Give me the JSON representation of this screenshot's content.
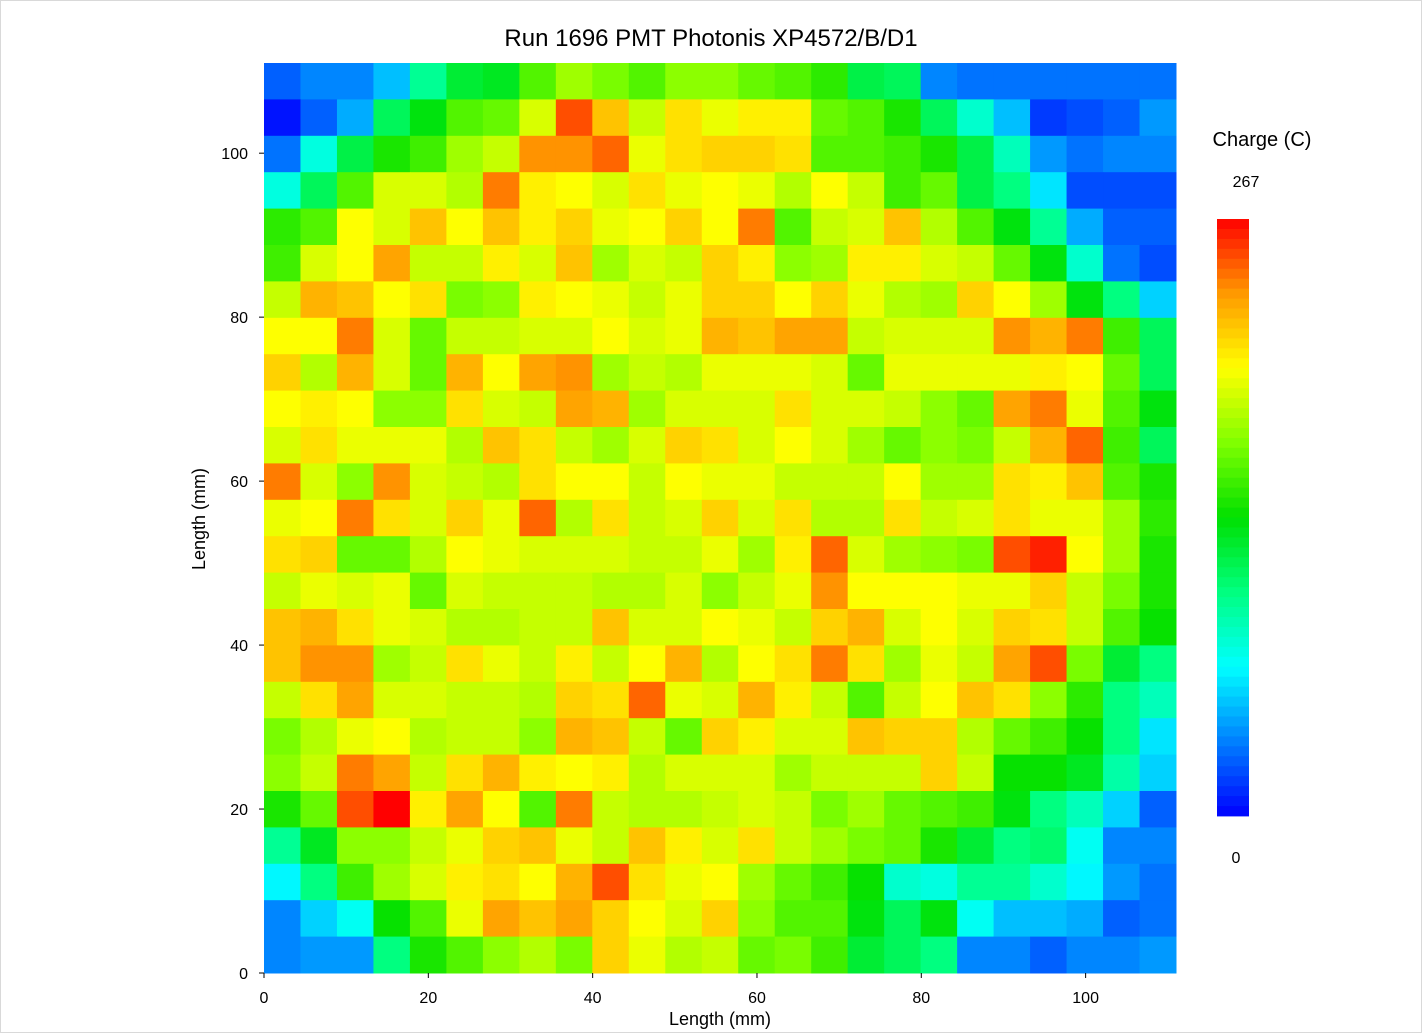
{
  "chart_data": {
    "type": "heatmap",
    "title": "Run 1696 PMT Photonis XP4572/B/D1",
    "xlabel": "Length (mm)",
    "ylabel": "Length (mm)",
    "xlim": [
      0,
      111
    ],
    "ylim": [
      0,
      111
    ],
    "x_ticks": [
      "0",
      "20",
      "40",
      "60",
      "80",
      "100"
    ],
    "y_ticks": [
      "0",
      "20",
      "40",
      "60",
      "80",
      "100"
    ],
    "grid": false,
    "legend": "right",
    "colorbar": {
      "title": "Charge (C)",
      "max_label": "267",
      "min_label": "0",
      "vmin": 0,
      "vmax": 267,
      "colors": [
        "#0000ff",
        "#0080ff",
        "#00ffff",
        "#00ff80",
        "#00e000",
        "#80ff00",
        "#ffff00",
        "#ff9900",
        "#ff0000"
      ]
    },
    "cell_size_mm": 4.44,
    "rows_top_to_bottom": [
      [
        25,
        35,
        35,
        50,
        95,
        120,
        125,
        155,
        175,
        165,
        155,
        170,
        170,
        160,
        155,
        145,
        115,
        110,
        35,
        30,
        30,
        30,
        30,
        30,
        30
      ],
      [
        5,
        25,
        45,
        110,
        130,
        155,
        160,
        190,
        250,
        220,
        185,
        210,
        195,
        205,
        205,
        160,
        155,
        140,
        110,
        80,
        50,
        15,
        20,
        25,
        40
      ],
      [
        30,
        75,
        115,
        140,
        150,
        175,
        185,
        235,
        235,
        245,
        195,
        210,
        215,
        215,
        210,
        155,
        155,
        150,
        140,
        115,
        85,
        40,
        30,
        35,
        35
      ],
      [
        75,
        110,
        155,
        190,
        190,
        180,
        240,
        205,
        200,
        190,
        210,
        195,
        200,
        195,
        180,
        200,
        185,
        150,
        160,
        115,
        100,
        60,
        20,
        20,
        20
      ],
      [
        145,
        155,
        200,
        190,
        220,
        200,
        220,
        205,
        215,
        195,
        200,
        215,
        200,
        240,
        155,
        185,
        190,
        220,
        180,
        155,
        130,
        95,
        45,
        25,
        25
      ],
      [
        150,
        190,
        200,
        230,
        185,
        185,
        205,
        190,
        220,
        175,
        190,
        185,
        215,
        205,
        170,
        175,
        205,
        205,
        190,
        185,
        160,
        130,
        80,
        30,
        20
      ],
      [
        185,
        225,
        220,
        200,
        210,
        165,
        170,
        205,
        200,
        195,
        185,
        195,
        215,
        215,
        200,
        215,
        195,
        180,
        175,
        215,
        200,
        175,
        130,
        100,
        55
      ],
      [
        200,
        200,
        240,
        190,
        160,
        185,
        185,
        190,
        190,
        200,
        190,
        195,
        225,
        220,
        230,
        230,
        185,
        190,
        190,
        190,
        235,
        225,
        240,
        150,
        110
      ],
      [
        215,
        180,
        225,
        190,
        160,
        225,
        200,
        230,
        235,
        175,
        185,
        180,
        195,
        195,
        195,
        190,
        160,
        195,
        195,
        195,
        195,
        205,
        200,
        160,
        110
      ],
      [
        200,
        205,
        200,
        170,
        170,
        210,
        190,
        185,
        230,
        225,
        175,
        190,
        190,
        190,
        210,
        190,
        190,
        185,
        170,
        160,
        230,
        240,
        195,
        155,
        130
      ],
      [
        190,
        210,
        195,
        195,
        195,
        180,
        220,
        210,
        185,
        175,
        190,
        215,
        210,
        190,
        200,
        190,
        175,
        160,
        170,
        165,
        185,
        225,
        245,
        150,
        110
      ],
      [
        240,
        190,
        170,
        235,
        190,
        185,
        180,
        210,
        200,
        200,
        185,
        200,
        195,
        195,
        185,
        185,
        185,
        200,
        175,
        175,
        210,
        205,
        220,
        155,
        140
      ],
      [
        195,
        200,
        240,
        210,
        190,
        215,
        195,
        245,
        180,
        210,
        185,
        190,
        215,
        190,
        210,
        180,
        180,
        210,
        185,
        190,
        210,
        195,
        195,
        175,
        145
      ],
      [
        210,
        215,
        160,
        160,
        180,
        200,
        195,
        190,
        190,
        190,
        185,
        185,
        195,
        175,
        205,
        245,
        190,
        175,
        170,
        165,
        250,
        260,
        200,
        175,
        140
      ],
      [
        185,
        195,
        190,
        195,
        160,
        190,
        185,
        185,
        185,
        180,
        180,
        190,
        170,
        185,
        195,
        235,
        200,
        200,
        200,
        195,
        195,
        215,
        185,
        165,
        140
      ],
      [
        220,
        225,
        210,
        195,
        190,
        180,
        180,
        185,
        185,
        220,
        190,
        190,
        200,
        195,
        185,
        215,
        225,
        190,
        200,
        190,
        215,
        210,
        185,
        155,
        135
      ],
      [
        220,
        235,
        235,
        175,
        185,
        210,
        195,
        185,
        205,
        185,
        200,
        225,
        180,
        200,
        210,
        240,
        210,
        175,
        195,
        185,
        230,
        250,
        165,
        120,
        100
      ],
      [
        185,
        210,
        230,
        190,
        190,
        185,
        185,
        180,
        215,
        210,
        245,
        195,
        190,
        225,
        205,
        185,
        155,
        185,
        200,
        220,
        210,
        170,
        145,
        100,
        85
      ],
      [
        165,
        180,
        195,
        200,
        180,
        185,
        185,
        170,
        225,
        220,
        185,
        160,
        215,
        205,
        190,
        190,
        220,
        215,
        215,
        180,
        160,
        150,
        135,
        100,
        60
      ],
      [
        170,
        185,
        240,
        230,
        185,
        210,
        225,
        205,
        200,
        205,
        180,
        190,
        190,
        190,
        175,
        185,
        185,
        185,
        215,
        185,
        135,
        135,
        125,
        90,
        55
      ],
      [
        140,
        160,
        250,
        267,
        205,
        230,
        200,
        155,
        240,
        185,
        180,
        180,
        185,
        190,
        185,
        165,
        175,
        160,
        155,
        150,
        130,
        100,
        85,
        55,
        25
      ],
      [
        95,
        125,
        170,
        170,
        185,
        195,
        215,
        220,
        195,
        185,
        220,
        205,
        190,
        210,
        185,
        175,
        165,
        160,
        140,
        120,
        100,
        105,
        70,
        35,
        35
      ],
      [
        65,
        100,
        150,
        175,
        190,
        205,
        210,
        200,
        225,
        250,
        210,
        195,
        200,
        175,
        160,
        150,
        135,
        80,
        75,
        95,
        95,
        80,
        65,
        40,
        30
      ],
      [
        35,
        55,
        70,
        135,
        155,
        195,
        230,
        220,
        230,
        215,
        200,
        190,
        215,
        170,
        155,
        155,
        130,
        110,
        130,
        70,
        50,
        50,
        45,
        25,
        30
      ],
      [
        35,
        40,
        40,
        100,
        140,
        155,
        170,
        180,
        165,
        215,
        195,
        180,
        185,
        160,
        165,
        150,
        120,
        110,
        100,
        35,
        35,
        25,
        35,
        35,
        40
      ]
    ]
  }
}
